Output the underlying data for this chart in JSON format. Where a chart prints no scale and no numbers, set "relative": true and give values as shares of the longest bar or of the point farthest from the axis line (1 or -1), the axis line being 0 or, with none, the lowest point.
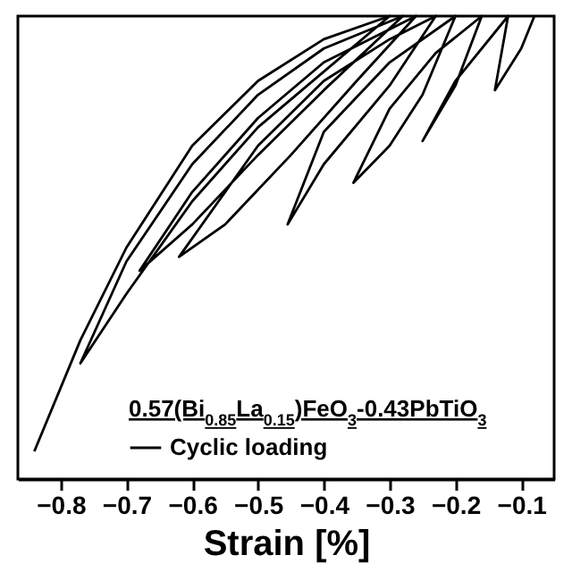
{
  "chart_data": {
    "type": "line",
    "relative": true,
    "xlabel": "Strain [%]",
    "legend_title": "0.57(Bi$_{0.85}$La$_{0.15}$)FeO$_{3}$-0.43PbTiO$_{3}$",
    "legend": "bottom",
    "xlim": [
      -0.865,
      -0.05
    ],
    "xticks": [
      -0.8,
      -0.7,
      -0.6,
      -0.5,
      -0.4,
      -0.3,
      -0.2,
      -0.1
    ],
    "line_style": "solid",
    "marker": "none",
    "x": [
      -0.84,
      -0.77,
      -0.7,
      -0.6,
      -0.5,
      -0.4,
      -0.3,
      -0.4,
      -0.5,
      -0.6,
      -0.7,
      -0.77,
      -0.7,
      -0.6,
      -0.5,
      -0.4,
      -0.28,
      -0.4,
      -0.5,
      -0.6,
      -0.68,
      -0.6,
      -0.5,
      -0.4,
      -0.26,
      -0.35,
      -0.45,
      -0.55,
      -0.62,
      -0.5,
      -0.4,
      -0.3,
      -0.23,
      -0.3,
      -0.4,
      -0.455,
      -0.4,
      -0.3,
      -0.2,
      -0.25,
      -0.3,
      -0.355,
      -0.3,
      -0.23,
      -0.16,
      -0.2,
      -0.25,
      -0.2,
      -0.12,
      -0.14,
      -0.1,
      -0.08
    ],
    "series": [
      {
        "name": "Cyclic loading",
        "color": "#000000",
        "values": [
          0.06,
          0.3,
          0.5,
          0.72,
          0.86,
          0.95,
          1.0,
          0.88,
          0.76,
          0.6,
          0.4,
          0.25,
          0.47,
          0.68,
          0.83,
          0.93,
          1.0,
          0.84,
          0.7,
          0.55,
          0.45,
          0.62,
          0.78,
          0.9,
          1.0,
          0.86,
          0.7,
          0.55,
          0.48,
          0.72,
          0.86,
          0.95,
          1.0,
          0.85,
          0.68,
          0.55,
          0.75,
          0.9,
          1.0,
          0.83,
          0.72,
          0.64,
          0.8,
          0.92,
          1.0,
          0.85,
          0.73,
          0.86,
          1.0,
          0.84,
          0.93,
          1.0
        ]
      }
    ]
  }
}
